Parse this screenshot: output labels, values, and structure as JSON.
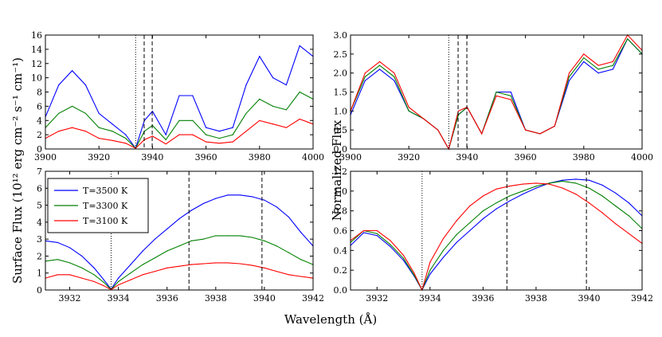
{
  "figure": {
    "xlabel": "Wavelength (Å)",
    "ylabel_left": "Surface Flux (10¹² erg cm⁻² s⁻¹ cm⁻¹)",
    "ylabel_right": "Normalized Flux"
  },
  "legend": {
    "placement": "top-left",
    "entries": [
      "T=3500 K",
      "T=3300 K",
      "T=3100 K"
    ]
  },
  "colors": {
    "T3500": "#0000ff",
    "T3300": "#008000",
    "T3100": "#ff0000"
  },
  "chart_data": [
    {
      "id": "top-left",
      "type": "line",
      "xlim": [
        3900,
        4000
      ],
      "ylim": [
        0,
        16
      ],
      "xticks": [
        "3900",
        "3920",
        "3940",
        "3960",
        "3980",
        "4000"
      ],
      "yticks": [
        "0",
        "2",
        "4",
        "6",
        "8",
        "10",
        "12",
        "14",
        "16"
      ],
      "vlines": [
        {
          "x": 3933.7,
          "style": "dotted"
        },
        {
          "x": 3936.9,
          "style": "dashed"
        },
        {
          "x": 3939.9,
          "style": "dashed"
        }
      ],
      "series": [
        {
          "name": "T=3500 K",
          "color": "#0000ff",
          "x": [
            3900,
            3905,
            3910,
            3915,
            3920,
            3925,
            3930,
            3933.7,
            3937,
            3940,
            3945,
            3950,
            3955,
            3960,
            3965,
            3970,
            3975,
            3980,
            3985,
            3990,
            3995,
            4000
          ],
          "y": [
            4.5,
            9.0,
            11.0,
            9.0,
            5.0,
            3.5,
            2.0,
            0.1,
            4.0,
            5.3,
            2.0,
            7.5,
            7.5,
            3.0,
            2.5,
            3.0,
            9.0,
            13.0,
            10.0,
            9.0,
            14.5,
            13.0
          ]
        },
        {
          "name": "T=3300 K",
          "color": "#008000",
          "x": [
            3900,
            3905,
            3910,
            3915,
            3920,
            3925,
            3930,
            3933.7,
            3937,
            3940,
            3945,
            3950,
            3955,
            3960,
            3965,
            3970,
            3975,
            3980,
            3985,
            3990,
            3995,
            4000
          ],
          "y": [
            3.0,
            5.0,
            6.0,
            5.0,
            3.0,
            2.5,
            1.5,
            0.1,
            2.5,
            3.3,
            1.3,
            4.0,
            4.0,
            2.0,
            1.5,
            2.0,
            5.0,
            7.0,
            6.0,
            5.5,
            8.0,
            7.0
          ]
        },
        {
          "name": "T=3100 K",
          "color": "#ff0000",
          "x": [
            3900,
            3905,
            3910,
            3915,
            3920,
            3925,
            3930,
            3933.7,
            3937,
            3940,
            3945,
            3950,
            3955,
            3960,
            3965,
            3970,
            3975,
            3980,
            3985,
            3990,
            3995,
            4000
          ],
          "y": [
            1.5,
            2.5,
            3.0,
            2.5,
            1.5,
            1.2,
            0.8,
            0.1,
            1.3,
            1.8,
            0.7,
            2.0,
            2.0,
            1.0,
            0.8,
            1.0,
            2.5,
            4.0,
            3.5,
            3.0,
            4.2,
            3.5
          ]
        }
      ]
    },
    {
      "id": "top-right",
      "type": "line",
      "xlim": [
        3900,
        4000
      ],
      "ylim": [
        0,
        3.0
      ],
      "xticks": [
        "3900",
        "3920",
        "3940",
        "3960",
        "3980",
        "4000"
      ],
      "yticks": [
        "0.0",
        "0.5",
        "1.0",
        "1.5",
        "2.0",
        "2.5",
        "3.0"
      ],
      "vlines": [
        {
          "x": 3933.7,
          "style": "dotted"
        },
        {
          "x": 3936.9,
          "style": "dashed"
        },
        {
          "x": 3939.9,
          "style": "dashed"
        }
      ],
      "series": [
        {
          "name": "T=3500 K",
          "color": "#0000ff",
          "x": [
            3900,
            3905,
            3910,
            3915,
            3920,
            3925,
            3930,
            3933.7,
            3937,
            3940,
            3945,
            3950,
            3955,
            3960,
            3965,
            3970,
            3975,
            3980,
            3985,
            3990,
            3995,
            4000
          ],
          "y": [
            0.9,
            1.8,
            2.1,
            1.8,
            1.0,
            0.8,
            0.5,
            0.0,
            0.9,
            1.1,
            0.4,
            1.5,
            1.5,
            0.5,
            0.4,
            0.6,
            1.8,
            2.3,
            2.0,
            2.1,
            2.9,
            2.5
          ]
        },
        {
          "name": "T=3300 K",
          "color": "#008000",
          "x": [
            3900,
            3905,
            3910,
            3915,
            3920,
            3925,
            3930,
            3933.7,
            3937,
            3940,
            3945,
            3950,
            3955,
            3960,
            3965,
            3970,
            3975,
            3980,
            3985,
            3990,
            3995,
            4000
          ],
          "y": [
            1.0,
            1.9,
            2.2,
            1.9,
            1.0,
            0.8,
            0.5,
            0.0,
            0.9,
            1.1,
            0.4,
            1.5,
            1.4,
            0.5,
            0.4,
            0.6,
            1.9,
            2.4,
            2.1,
            2.2,
            2.9,
            2.5
          ]
        },
        {
          "name": "T=3100 K",
          "color": "#ff0000",
          "x": [
            3900,
            3905,
            3910,
            3915,
            3920,
            3925,
            3930,
            3933.7,
            3937,
            3940,
            3945,
            3950,
            3955,
            3960,
            3965,
            3970,
            3975,
            3980,
            3985,
            3990,
            3995,
            4000
          ],
          "y": [
            1.0,
            2.0,
            2.3,
            2.0,
            1.1,
            0.8,
            0.5,
            0.0,
            1.0,
            1.1,
            0.4,
            1.4,
            1.3,
            0.5,
            0.4,
            0.6,
            2.0,
            2.5,
            2.2,
            2.3,
            3.0,
            2.6
          ]
        }
      ]
    },
    {
      "id": "bottom-left",
      "type": "line",
      "xlim": [
        3931,
        3942
      ],
      "ylim": [
        0,
        7
      ],
      "xticks": [
        "3932",
        "3934",
        "3936",
        "3938",
        "3940",
        "3942"
      ],
      "yticks": [
        "0",
        "1",
        "2",
        "3",
        "4",
        "5",
        "6",
        "7"
      ],
      "vlines": [
        {
          "x": 3933.7,
          "style": "dotted"
        },
        {
          "x": 3936.9,
          "style": "dashed"
        },
        {
          "x": 3939.9,
          "style": "dashed"
        }
      ],
      "series": [
        {
          "name": "T=3500 K",
          "color": "#0000ff",
          "x": [
            3931,
            3931.5,
            3932,
            3932.5,
            3933,
            3933.4,
            3933.7,
            3934,
            3934.5,
            3935,
            3935.5,
            3936,
            3936.5,
            3937,
            3937.5,
            3938,
            3938.5,
            3939,
            3939.5,
            3940,
            3940.5,
            3941,
            3941.5,
            3942
          ],
          "y": [
            2.9,
            2.8,
            2.5,
            2.0,
            1.3,
            0.6,
            0.05,
            0.7,
            1.5,
            2.3,
            3.0,
            3.6,
            4.2,
            4.7,
            5.1,
            5.4,
            5.6,
            5.6,
            5.5,
            5.3,
            4.9,
            4.3,
            3.4,
            2.6
          ]
        },
        {
          "name": "T=3300 K",
          "color": "#008000",
          "x": [
            3931,
            3931.5,
            3932,
            3932.5,
            3933,
            3933.4,
            3933.7,
            3934,
            3934.5,
            3935,
            3935.5,
            3936,
            3936.5,
            3937,
            3937.5,
            3938,
            3938.5,
            3939,
            3939.5,
            3940,
            3940.5,
            3941,
            3941.5,
            3942
          ],
          "y": [
            1.7,
            1.8,
            1.6,
            1.3,
            0.9,
            0.45,
            0.03,
            0.5,
            1.0,
            1.5,
            1.9,
            2.3,
            2.6,
            2.9,
            3.0,
            3.2,
            3.2,
            3.2,
            3.1,
            2.9,
            2.6,
            2.2,
            1.8,
            1.5
          ]
        },
        {
          "name": "T=3100 K",
          "color": "#ff0000",
          "x": [
            3931,
            3931.5,
            3932,
            3932.5,
            3933,
            3933.4,
            3933.7,
            3934,
            3934.5,
            3935,
            3935.5,
            3936,
            3936.5,
            3937,
            3937.5,
            3938,
            3938.5,
            3939,
            3939.5,
            3940,
            3940.5,
            3941,
            3941.5,
            3942
          ],
          "y": [
            0.7,
            0.9,
            0.9,
            0.7,
            0.5,
            0.25,
            0.02,
            0.3,
            0.6,
            0.9,
            1.1,
            1.3,
            1.4,
            1.5,
            1.55,
            1.6,
            1.6,
            1.55,
            1.45,
            1.3,
            1.1,
            0.9,
            0.8,
            0.7
          ]
        }
      ]
    },
    {
      "id": "bottom-right",
      "type": "line",
      "xlim": [
        3931,
        3942
      ],
      "ylim": [
        0,
        1.2
      ],
      "xticks": [
        "3932",
        "3934",
        "3936",
        "3938",
        "3940",
        "3942"
      ],
      "yticks": [
        "0.0",
        "0.2",
        "0.4",
        "0.6",
        "0.8",
        "1.0",
        "1.2"
      ],
      "vlines": [
        {
          "x": 3933.7,
          "style": "dotted"
        },
        {
          "x": 3936.9,
          "style": "dashed"
        },
        {
          "x": 3939.9,
          "style": "dashed"
        }
      ],
      "series": [
        {
          "name": "T=3500 K",
          "color": "#0000ff",
          "x": [
            3931,
            3931.5,
            3932,
            3932.5,
            3933,
            3933.4,
            3933.7,
            3934,
            3934.5,
            3935,
            3935.5,
            3936,
            3936.5,
            3937,
            3937.5,
            3938,
            3938.5,
            3939,
            3939.5,
            3940,
            3940.5,
            3941,
            3941.5,
            3942
          ],
          "y": [
            0.45,
            0.58,
            0.55,
            0.44,
            0.3,
            0.14,
            0.0,
            0.16,
            0.33,
            0.48,
            0.6,
            0.72,
            0.82,
            0.9,
            0.97,
            1.03,
            1.08,
            1.11,
            1.12,
            1.11,
            1.06,
            0.98,
            0.88,
            0.75
          ]
        },
        {
          "name": "T=3300 K",
          "color": "#008000",
          "x": [
            3931,
            3931.5,
            3932,
            3932.5,
            3933,
            3933.4,
            3933.7,
            3934,
            3934.5,
            3935,
            3935.5,
            3936,
            3936.5,
            3937,
            3937.5,
            3938,
            3938.5,
            3939,
            3939.5,
            3940,
            3940.5,
            3941,
            3941.5,
            3942
          ],
          "y": [
            0.48,
            0.6,
            0.57,
            0.46,
            0.32,
            0.15,
            0.0,
            0.2,
            0.4,
            0.56,
            0.68,
            0.8,
            0.88,
            0.95,
            1.0,
            1.05,
            1.08,
            1.1,
            1.08,
            1.03,
            0.95,
            0.85,
            0.75,
            0.62
          ]
        },
        {
          "name": "T=3100 K",
          "color": "#ff0000",
          "x": [
            3931,
            3931.5,
            3932,
            3932.5,
            3933,
            3933.4,
            3933.7,
            3934,
            3934.5,
            3935,
            3935.5,
            3936,
            3936.5,
            3937,
            3937.5,
            3938,
            3938.5,
            3939,
            3939.5,
            3940,
            3940.5,
            3941,
            3941.5,
            3942
          ],
          "y": [
            0.5,
            0.6,
            0.6,
            0.5,
            0.35,
            0.17,
            0.0,
            0.28,
            0.52,
            0.7,
            0.85,
            0.95,
            1.02,
            1.05,
            1.07,
            1.08,
            1.07,
            1.03,
            0.97,
            0.88,
            0.78,
            0.67,
            0.57,
            0.47
          ]
        }
      ]
    }
  ]
}
